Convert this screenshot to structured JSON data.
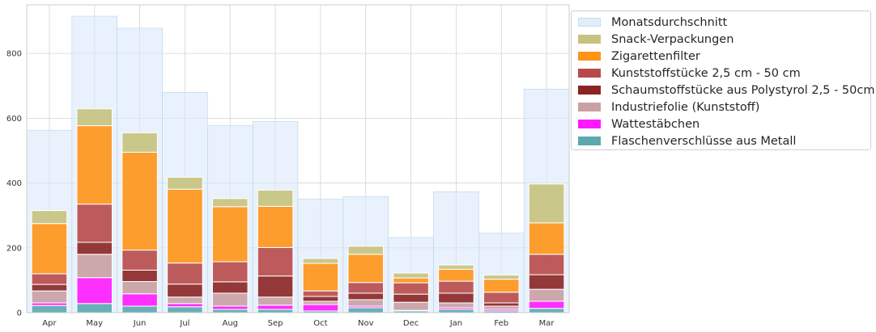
{
  "chart_data": {
    "type": "bar",
    "stacked": true,
    "grid": true,
    "legend_position": "outside-right",
    "ylim": [
      0,
      950
    ],
    "yticks": [
      0,
      200,
      400,
      600,
      800
    ],
    "categories": [
      "Apr",
      "May",
      "Jun",
      "Jul",
      "Aug",
      "Sep",
      "Oct",
      "Nov",
      "Dec",
      "Jan",
      "Feb",
      "Mar"
    ],
    "background_series": {
      "name": "Monatsdurchschnitt",
      "color": "#dbe9fa",
      "values": [
        563,
        915,
        878,
        680,
        577,
        590,
        350,
        358,
        232,
        373,
        245,
        690
      ]
    },
    "series": [
      {
        "name": "Flaschenverschlüsse aus Metall",
        "color": "#5aa9ae",
        "values": [
          22,
          28,
          20,
          18,
          10,
          10,
          5,
          15,
          5,
          10,
          5,
          13
        ]
      },
      {
        "name": "Wattestäbchen",
        "color": "#ff1aff",
        "values": [
          8,
          80,
          38,
          10,
          10,
          13,
          20,
          5,
          2,
          5,
          5,
          22
        ]
      },
      {
        "name": "Industriefolie (Kunststoff)",
        "color": "#c9a0a3",
        "values": [
          37,
          72,
          38,
          20,
          40,
          25,
          10,
          20,
          25,
          15,
          10,
          37
        ]
      },
      {
        "name": "Schaumstoffstücke aus Polystyrol 2,5 - 50cm",
        "color": "#8b2323",
        "values": [
          20,
          37,
          35,
          40,
          35,
          65,
          15,
          20,
          25,
          30,
          10,
          45
        ]
      },
      {
        "name": "Kunststoffstücke 2,5 cm - 50 cm",
        "color": "#b84a4a",
        "values": [
          33,
          118,
          62,
          65,
          62,
          88,
          17,
          33,
          35,
          37,
          33,
          63
        ]
      },
      {
        "name": "Zigarettenfilter",
        "color": "#ff9416",
        "values": [
          155,
          242,
          302,
          228,
          170,
          127,
          85,
          87,
          15,
          37,
          40,
          97
        ]
      },
      {
        "name": "Snack-Verpackungen",
        "color": "#c7c27d",
        "values": [
          40,
          52,
          60,
          37,
          25,
          50,
          15,
          25,
          15,
          13,
          13,
          120
        ]
      }
    ],
    "legend_order": [
      "Monatsdurchschnitt",
      "Snack-Verpackungen",
      "Zigarettenfilter",
      "Kunststoffstücke 2,5 cm - 50 cm",
      "Schaumstoffstücke aus Polystyrol 2,5 - 50cm",
      "Industriefolie (Kunststoff)",
      "Wattestäbchen",
      "Flaschenverschlüsse aus Metall"
    ]
  }
}
